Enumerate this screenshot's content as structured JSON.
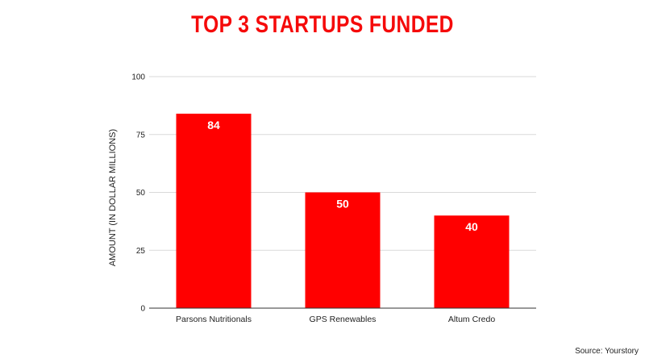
{
  "chart_data": {
    "type": "bar",
    "title": "TOP 3 STARTUPS FUNDED",
    "ylabel": "AMOUNT (IN DOLLAR MILLIONS)",
    "xlabel": "",
    "categories": [
      "Parsons Nutritionals",
      "GPS Renewables",
      "Altum Credo"
    ],
    "values": [
      84,
      50,
      40
    ],
    "data_labels": [
      "84",
      "50",
      "40"
    ],
    "ylim": [
      0,
      100
    ],
    "yticks": [
      0,
      25,
      50,
      75,
      100
    ],
    "grid": true,
    "legend": "none",
    "bar_color": "#ff0000"
  },
  "source": "Source: Yourstory",
  "colors": {
    "title": "#f50a0a",
    "bar": "#ff0000",
    "grid": "#d9d9d9"
  }
}
